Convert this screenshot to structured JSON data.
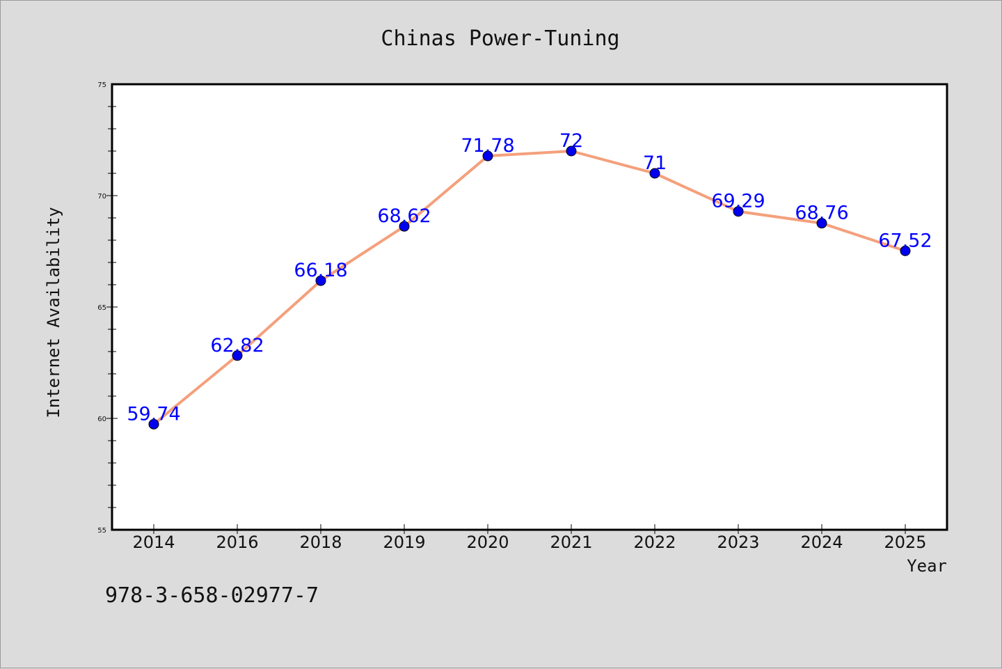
{
  "chart_data": {
    "type": "line",
    "title": "Chinas Power-Tuning",
    "xlabel": "Year",
    "ylabel": "Internet Availability",
    "categories": [
      "2014",
      "2016",
      "2018",
      "2019",
      "2020",
      "2021",
      "2022",
      "2023",
      "2024",
      "2025"
    ],
    "series": [
      {
        "values": [
          59.74,
          62.82,
          66.18,
          68.62,
          71.78,
          72,
          71,
          69.29,
          68.76,
          67.52
        ],
        "labels": [
          "59.74",
          "62.82",
          "66.18",
          "68.62",
          "71.78",
          "72",
          "71",
          "69.29",
          "68.76",
          "67.52"
        ],
        "line_color": "#f4a07c",
        "marker_color": "#0000ee"
      }
    ],
    "ylim": [
      55,
      75
    ],
    "yticks": [
      "55",
      "60",
      "65",
      "70",
      "75"
    ],
    "grid": false,
    "legend": "none",
    "background": "#dcdcdc",
    "plot_background": "#ffffff"
  },
  "footer": {
    "isbn": "978-3-658-02977-7"
  }
}
